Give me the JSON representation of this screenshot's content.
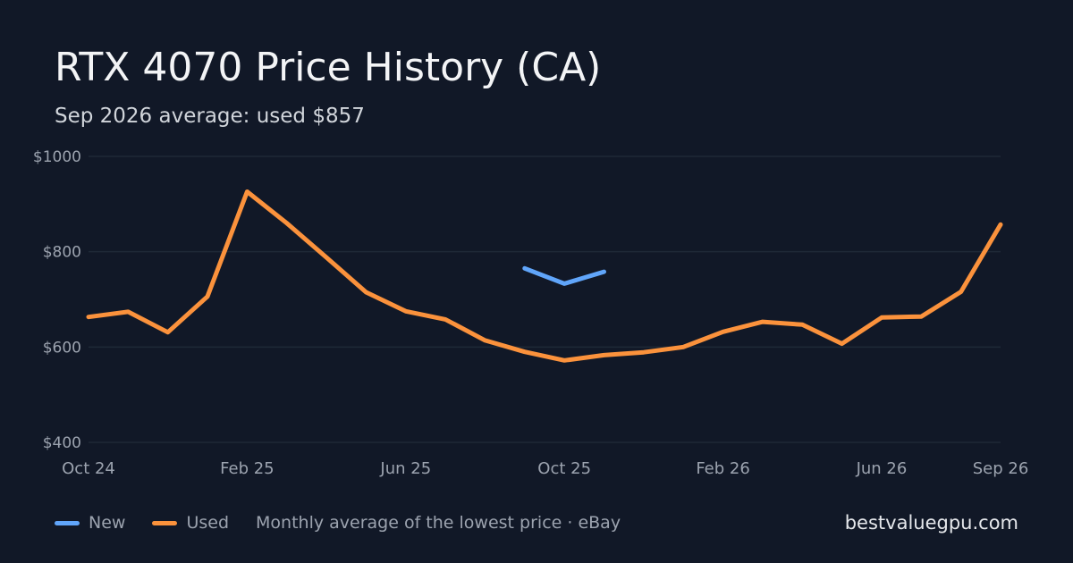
{
  "header": {
    "title": "RTX 4070 Price History (CA)",
    "subtitle": "Sep 2026 average: used $857"
  },
  "legend": {
    "new_label": "New",
    "used_label": "Used",
    "note": "Monthly average of the lowest price · eBay"
  },
  "brand": "bestvaluegpu.com",
  "colors": {
    "background": "#111827",
    "grid": "#1f2937",
    "axis_text": "#9ca3af",
    "new": "#60a5fa",
    "used": "#fb923c"
  },
  "chart_data": {
    "type": "line",
    "x": [
      "Oct 24",
      "Nov 24",
      "Dec 24",
      "Jan 25",
      "Feb 25",
      "Mar 25",
      "Apr 25",
      "May 25",
      "Jun 25",
      "Jul 25",
      "Aug 25",
      "Sep 25",
      "Oct 25",
      "Nov 25",
      "Dec 25",
      "Jan 26",
      "Feb 26",
      "Mar 26",
      "Apr 26",
      "May 26",
      "Jun 26",
      "Jul 26",
      "Aug 26",
      "Sep 26"
    ],
    "x_tick_labels": [
      "Oct 24",
      "Feb 25",
      "Jun 25",
      "Oct 25",
      "Feb 26",
      "Jun 26",
      "Sep 26"
    ],
    "y_tick_labels": [
      "$1000",
      "$800",
      "$600",
      "$400"
    ],
    "y_ticks": [
      1000,
      800,
      600,
      400
    ],
    "ylim": [
      400,
      1000
    ],
    "grid": true,
    "legend_position": "bottom-left",
    "series": [
      {
        "name": "New",
        "values": [
          null,
          null,
          null,
          null,
          null,
          null,
          null,
          null,
          null,
          null,
          null,
          765,
          733,
          758,
          null,
          null,
          null,
          null,
          null,
          null,
          null,
          null,
          null,
          null
        ]
      },
      {
        "name": "Used",
        "values": [
          663,
          674,
          631,
          706,
          926,
          860,
          788,
          715,
          675,
          658,
          614,
          590,
          572,
          583,
          589,
          600,
          632,
          653,
          647,
          607,
          662,
          664,
          716,
          857
        ]
      }
    ]
  }
}
